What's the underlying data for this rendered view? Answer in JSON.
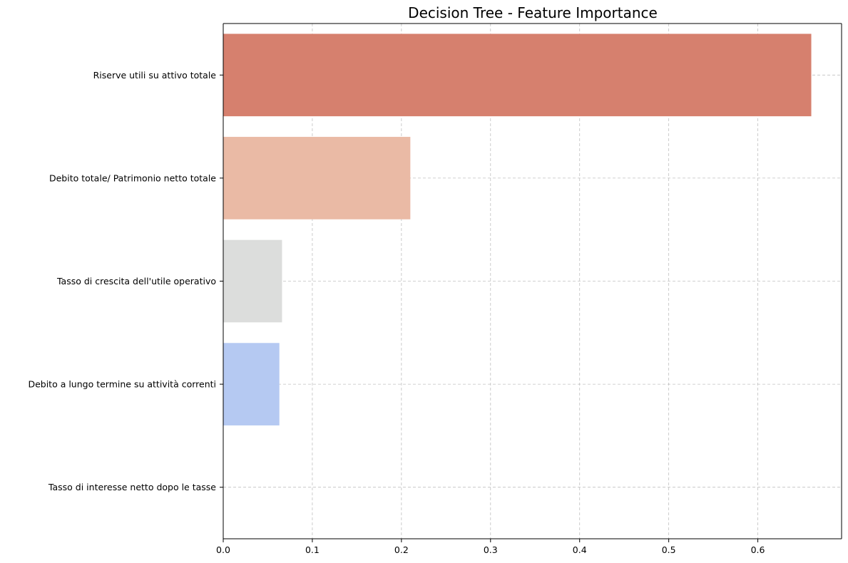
{
  "chart_data": {
    "type": "bar",
    "orientation": "horizontal",
    "title": "Decision Tree - Feature Importance",
    "xlabel": "",
    "ylabel": "",
    "categories": [
      "Riserve utili su attivo totale",
      "Debito totale/ Patrimonio netto totale",
      "Tasso di crescita dell'utile operativo",
      "Debito a lungo termine su attività correnti",
      "Tasso di interesse netto dopo le tasse"
    ],
    "values": [
      0.66,
      0.21,
      0.066,
      0.063,
      0.0
    ],
    "colors": [
      "#d6806e",
      "#eabaa5",
      "#dcdddc",
      "#b5c9f2",
      "#8fb0fe"
    ],
    "xlim": [
      0,
      0.694
    ],
    "xticks": [
      0.0,
      0.1,
      0.2,
      0.3,
      0.4,
      0.5,
      0.6
    ],
    "xtick_labels": [
      "0.0",
      "0.1",
      "0.2",
      "0.3",
      "0.4",
      "0.5",
      "0.6"
    ],
    "grid": true,
    "grid_style": "dashed"
  }
}
